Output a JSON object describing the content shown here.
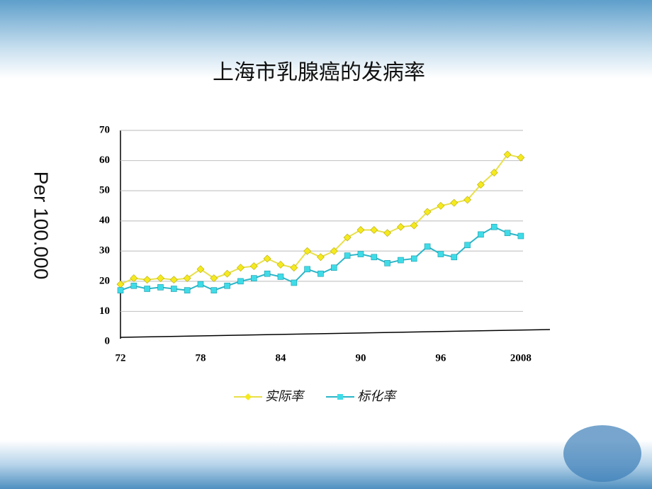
{
  "chart_data": {
    "type": "line",
    "title": "上海市乳腺癌的发病率",
    "y_label": "Per 100.000",
    "categories": [
      "72",
      null,
      null,
      null,
      null,
      null,
      "78",
      null,
      null,
      null,
      null,
      null,
      "84",
      null,
      null,
      null,
      null,
      null,
      "90",
      null,
      null,
      null,
      null,
      null,
      "96",
      null,
      null,
      null,
      null,
      null,
      "2008"
    ],
    "series": [
      {
        "name": "实际率",
        "color": "#e8e04a",
        "marker_color": "#f5ea1e",
        "values": [
          19,
          21,
          20.5,
          21,
          20.5,
          21,
          24,
          21,
          22.5,
          24.5,
          25,
          27.5,
          25.5,
          24.5,
          30,
          28,
          30,
          34.5,
          37,
          37,
          36,
          38,
          38.5,
          43,
          45,
          46,
          47,
          52,
          56,
          62,
          61
        ]
      },
      {
        "name": "标化率",
        "color": "#2bb6c8",
        "marker_color": "#3fdce8",
        "values": [
          17,
          18.5,
          17.5,
          18,
          17.5,
          17,
          19,
          17,
          18.5,
          20,
          21,
          22.5,
          21.5,
          19.5,
          24,
          22.5,
          24.5,
          28.5,
          29,
          28,
          26,
          27,
          27.5,
          31.5,
          29,
          28,
          32,
          35.5,
          38,
          36,
          35
        ]
      }
    ],
    "ylim": [
      0,
      70
    ],
    "yticks": [
      0,
      10,
      20,
      30,
      40,
      50,
      60,
      70
    ],
    "grid": true,
    "legend": "bottom"
  }
}
